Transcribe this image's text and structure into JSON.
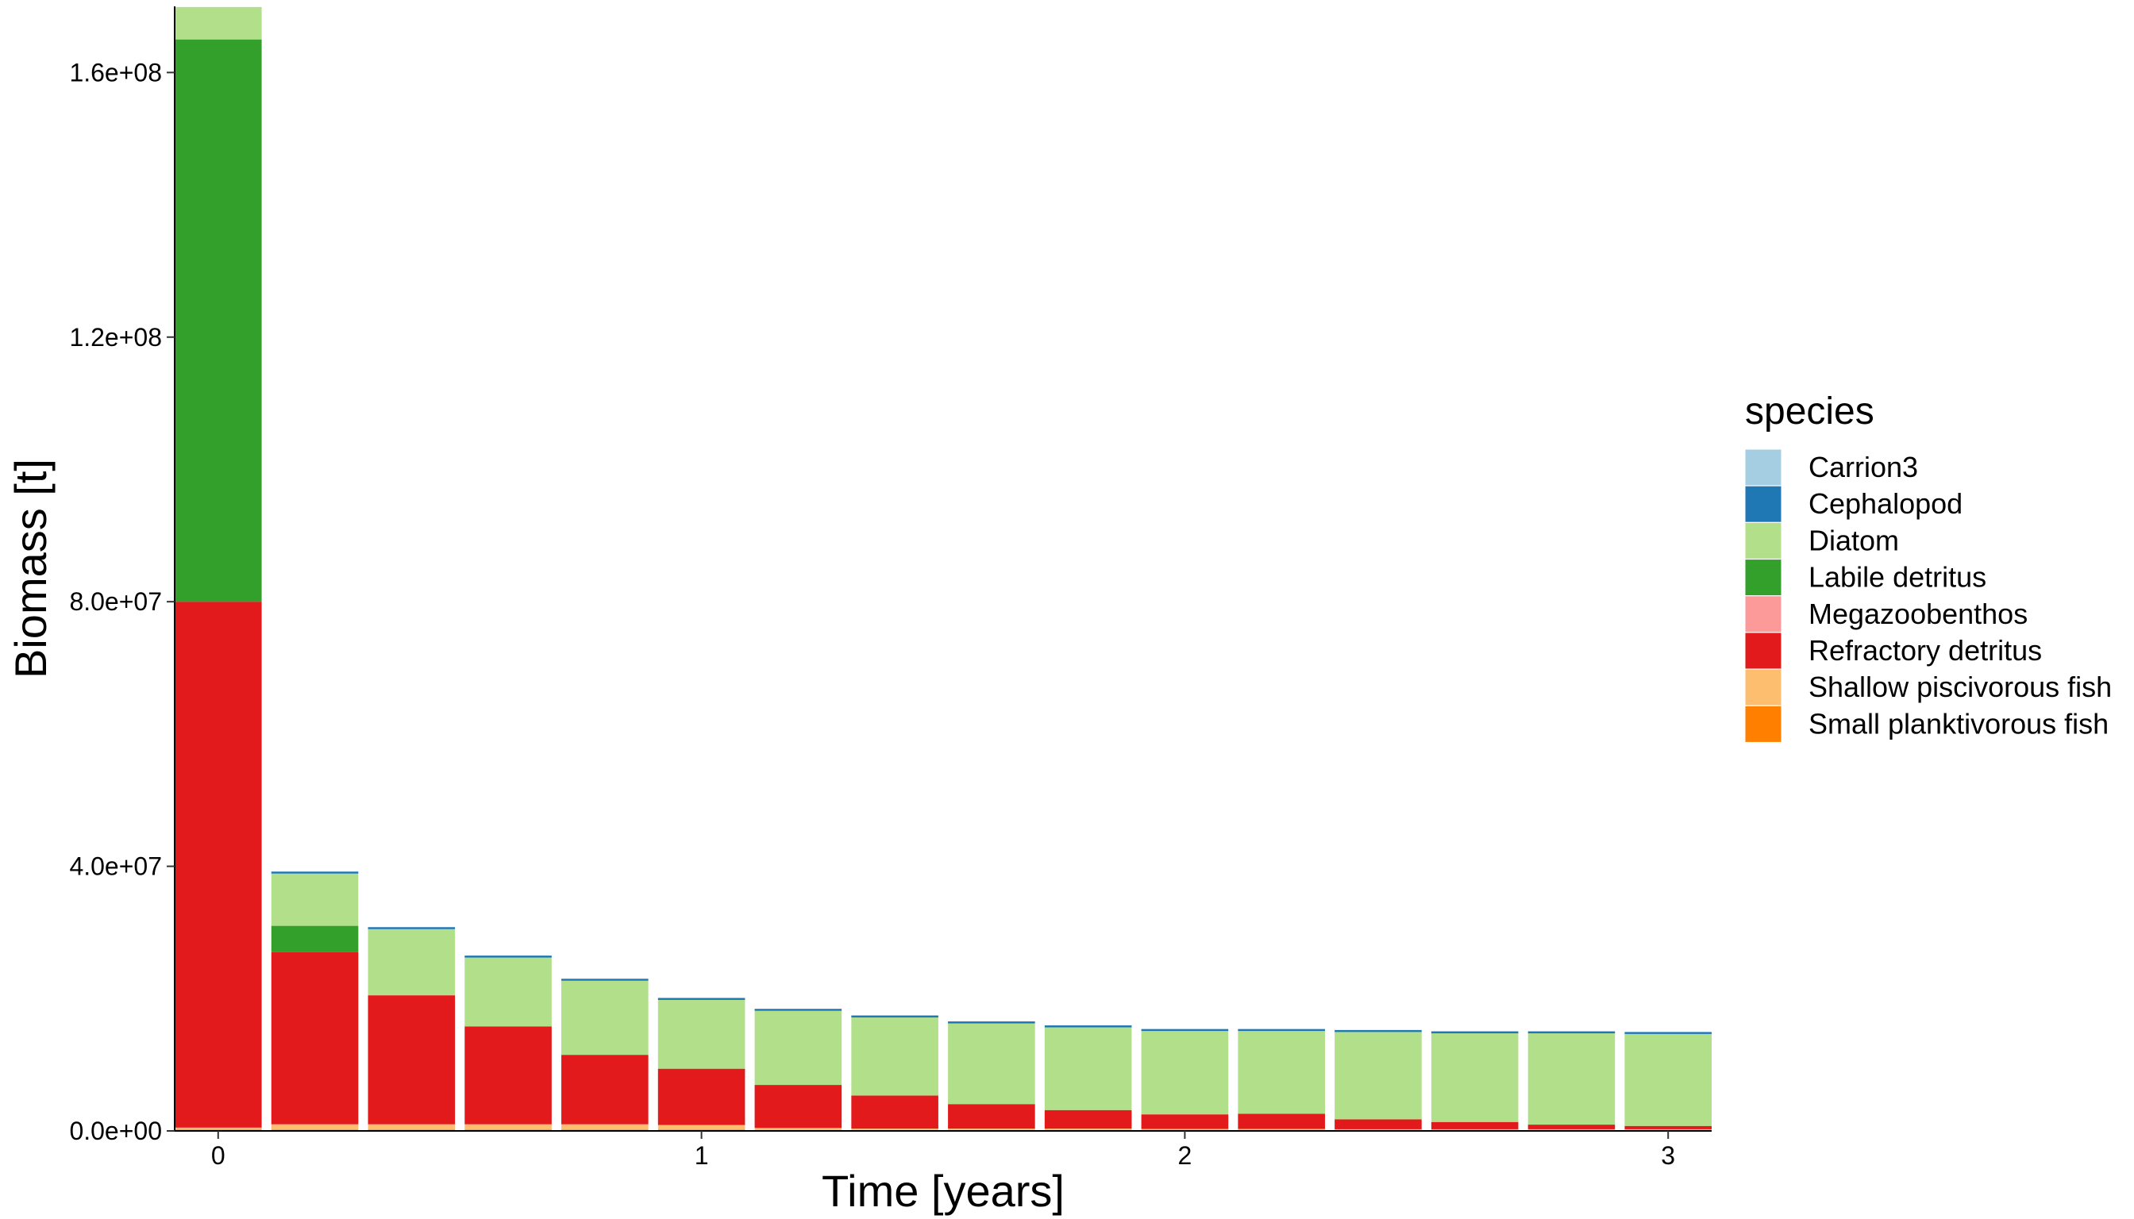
{
  "chart_data": {
    "type": "bar",
    "stacked": true,
    "title": "",
    "xlabel": "Time [years]",
    "ylabel": "Biomass [t]",
    "xlim": [
      -0.09,
      3.09
    ],
    "ylim": [
      0,
      170000000
    ],
    "x_ticks": [
      0,
      1,
      2,
      3
    ],
    "y_ticks": [
      0,
      40000000,
      80000000,
      120000000,
      160000000
    ],
    "y_tick_labels": [
      "0.0e+00",
      "4.0e+07",
      "8.0e+07",
      "1.2e+08",
      "1.6e+08"
    ],
    "grid": false,
    "legend_title": "species",
    "legend_position": "right",
    "x": [
      0,
      0.2,
      0.4,
      0.6,
      0.8,
      1.0,
      1.2,
      1.4,
      1.6,
      1.8,
      2.0,
      2.2,
      2.4,
      2.6,
      2.8,
      3.0
    ],
    "bar_width": 0.18,
    "series": [
      {
        "name": "Small planktivorous fish",
        "color": "#FF7F00",
        "values": [
          200000,
          200000,
          200000,
          200000,
          200000,
          200000,
          150000,
          150000,
          150000,
          150000,
          150000,
          150000,
          150000,
          150000,
          150000,
          150000
        ]
      },
      {
        "name": "Shallow piscivorous fish",
        "color": "#FDBF6F",
        "values": [
          300000,
          800000,
          800000,
          800000,
          800000,
          700000,
          300000,
          200000,
          200000,
          200000,
          150000,
          150000,
          100000,
          100000,
          100000,
          100000
        ]
      },
      {
        "name": "Refractory detritus",
        "color": "#E31A1C",
        "values": [
          79500000,
          26000000,
          19500000,
          14800000,
          10500000,
          8500000,
          6500000,
          5000000,
          3700000,
          2800000,
          2200000,
          2300000,
          1500000,
          1100000,
          700000,
          500000
        ]
      },
      {
        "name": "Megazoobenthos",
        "color": "#FB9A99",
        "values": [
          0,
          0,
          0,
          0,
          0,
          0,
          0,
          0,
          0,
          0,
          0,
          0,
          0,
          0,
          0,
          0
        ]
      },
      {
        "name": "Labile detritus",
        "color": "#33A02C",
        "values": [
          85000000,
          4000000,
          0,
          0,
          0,
          0,
          0,
          0,
          0,
          0,
          0,
          0,
          0,
          0,
          0,
          0
        ]
      },
      {
        "name": "Diatom",
        "color": "#B2DF8A",
        "values": [
          4900000,
          7900000,
          10000000,
          10400000,
          11200000,
          10400000,
          11200000,
          11800000,
          12200000,
          12500000,
          12600000,
          12500000,
          13200000,
          13400000,
          13800000,
          13900000
        ]
      },
      {
        "name": "Cephalopod",
        "color": "#1F78B4",
        "values": [
          0,
          300000,
          300000,
          300000,
          300000,
          300000,
          300000,
          300000,
          300000,
          300000,
          300000,
          300000,
          300000,
          300000,
          300000,
          300000
        ]
      },
      {
        "name": "Carrion3",
        "color": "#A6CEE3",
        "values": [
          0,
          0,
          0,
          0,
          0,
          0,
          0,
          0,
          0,
          0,
          0,
          0,
          0,
          0,
          0,
          0
        ]
      }
    ],
    "legend_order": [
      "Carrion3",
      "Cephalopod",
      "Diatom",
      "Labile detritus",
      "Megazoobenthos",
      "Refractory detritus",
      "Shallow piscivorous fish",
      "Small planktivorous fish"
    ]
  }
}
